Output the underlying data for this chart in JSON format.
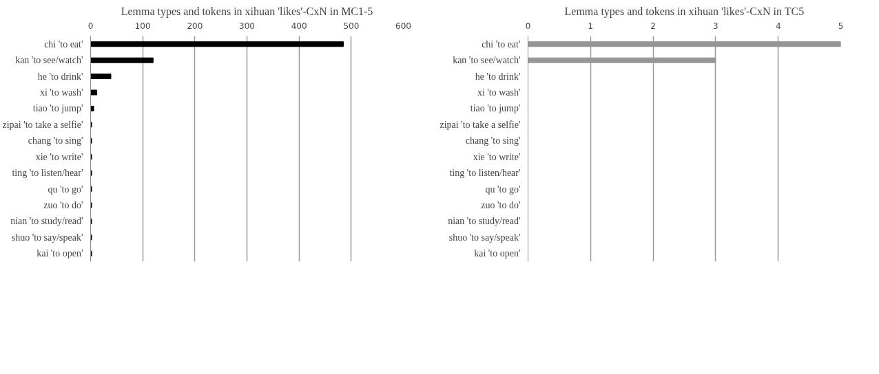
{
  "chart_data": [
    {
      "type": "bar",
      "orientation": "horizontal",
      "title": "Lemma types and tokens in xihuan 'likes'-CxN in MC1-5",
      "categories": [
        "chi 'to eat'",
        "kan 'to see/watch'",
        "he 'to drink'",
        "xi 'to wash'",
        "tiao 'to jump'",
        "zipai 'to take a selfie'",
        "chang 'to sing'",
        "xie 'to write'",
        "ting 'to listen/hear'",
        "qu 'to go'",
        "zuo 'to do'",
        "nian 'to study/read'",
        "shuo 'to say/speak'",
        "kai 'to open'"
      ],
      "values": [
        485,
        120,
        39,
        12,
        6,
        2,
        2,
        2,
        2,
        2,
        2,
        2,
        2,
        2
      ],
      "color": "#000000",
      "xlim": [
        0,
        600
      ],
      "xticks": [
        0,
        100,
        200,
        300,
        400,
        500,
        600
      ],
      "grid": "x"
    },
    {
      "type": "bar",
      "orientation": "horizontal",
      "title": "Lemma types and tokens in xihuan 'likes'-CxN in TC5",
      "categories": [
        "chi 'to eat'",
        "kan 'to see/watch'",
        "he 'to drink'",
        "xi 'to wash'",
        "tiao 'to jump'",
        "zipai 'to take a selfie'",
        "chang 'to sing'",
        "xie 'to write'",
        "ting 'to listen/hear'",
        "qu 'to go'",
        "zuo 'to do'",
        "nian 'to study/read'",
        "shuo 'to say/speak'",
        "kai 'to open'"
      ],
      "values": [
        5,
        3,
        0,
        0,
        0,
        0,
        0,
        0,
        0,
        0,
        0,
        0,
        0,
        0
      ],
      "color": "#969696",
      "xlim": [
        0,
        5
      ],
      "xticks": [
        0,
        1,
        2,
        3,
        4,
        5
      ],
      "grid": "x"
    }
  ]
}
